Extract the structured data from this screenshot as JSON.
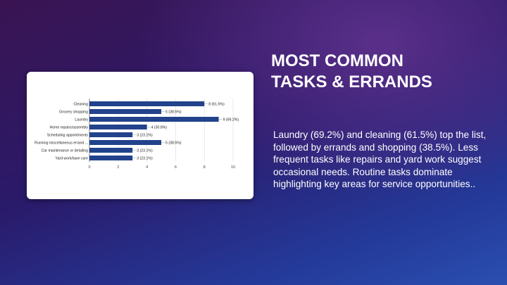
{
  "slide": {
    "title_line1": "MOST COMMON",
    "title_line2": "TASKS & ERRANDS",
    "body": "Laundry (69.2%) and cleaning (61.5%) top the list, followed by errands and shopping (38.5%). Less frequent tasks like repairs and yard work suggest occasional needs. Routine tasks dominate highlighting key areas for service opportunities.."
  },
  "chart_data": {
    "type": "bar",
    "orientation": "horizontal",
    "categories": [
      "Cleaning",
      "Grocery shopping",
      "Laundry",
      "Home repairs/assembly",
      "Scheduling appointments",
      "Running miscellaneous errand ...",
      "Car maintenance or detailing",
      "Yard work/lawn care"
    ],
    "values": [
      8,
      5,
      9,
      4,
      3,
      5,
      3,
      3
    ],
    "data_labels": [
      "8 (61.5%)",
      "5 (38.5%)",
      "9 (69.2%)",
      "4 (30.8%)",
      "3 (23.1%)",
      "5 (38.5%)",
      "3 (23.1%)",
      "3 (23.1%)"
    ],
    "xlim": [
      0,
      10
    ],
    "xticks": [
      0,
      2,
      4,
      6,
      8,
      10
    ],
    "grid": true,
    "bar_color": "#22428c"
  }
}
